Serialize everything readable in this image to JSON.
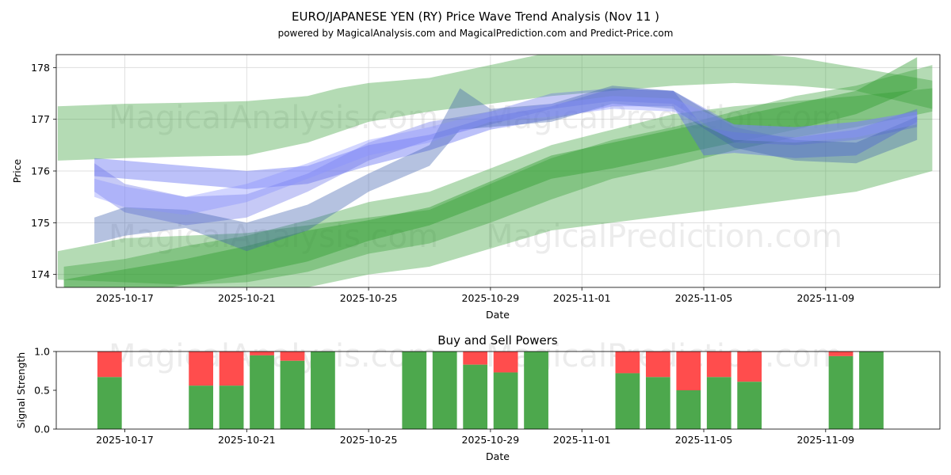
{
  "chart_data": [
    {
      "type": "area",
      "title": "EURO/JAPANESE YEN (RY) Price Wave Trend Analysis (Nov 11 )",
      "subtitle": "powered by MagicalAnalysis.com and MagicalPrediction.com and Predict-Price.com",
      "xlabel": "Date",
      "ylabel": "Price",
      "x_ticks": [
        "2025-10-17",
        "2025-10-21",
        "2025-10-25",
        "2025-10-29",
        "2025-11-01",
        "2025-11-05",
        "2025-11-09"
      ],
      "x_tick_days": [
        2,
        6,
        10,
        14,
        17,
        21,
        25
      ],
      "xlim_days": [
        -0.25,
        28.75
      ],
      "y_ticks": [
        174,
        175,
        176,
        177,
        178
      ],
      "ylim": [
        173.75,
        178.25
      ],
      "watermarks": [
        "MagicalAnalysis.com",
        "MagicalPrediction.com"
      ],
      "green_bands": [
        {
          "x": [
            -0.2,
            2,
            4,
            6,
            8,
            9,
            10,
            12,
            14,
            16,
            18,
            20,
            22,
            24,
            26,
            28.5
          ],
          "lower": [
            176.2,
            176.25,
            176.28,
            176.3,
            176.55,
            176.75,
            176.95,
            177.15,
            177.3,
            177.45,
            177.55,
            177.65,
            177.7,
            177.65,
            177.55,
            177.2
          ],
          "upper": [
            177.25,
            177.3,
            177.32,
            177.35,
            177.45,
            177.6,
            177.7,
            177.8,
            178.05,
            178.3,
            178.45,
            178.4,
            178.3,
            178.2,
            178.0,
            177.75
          ]
        },
        {
          "x": [
            -0.2,
            2,
            4,
            6,
            8,
            10,
            12,
            14,
            16,
            18,
            20,
            22,
            24,
            26,
            28.5
          ],
          "lower": [
            173.9,
            173.85,
            173.8,
            173.85,
            174.05,
            174.4,
            174.6,
            175.0,
            175.45,
            175.85,
            176.1,
            176.4,
            176.65,
            176.85,
            177.15
          ],
          "upper": [
            174.45,
            174.7,
            174.75,
            174.8,
            174.95,
            175.1,
            175.25,
            175.75,
            176.25,
            176.6,
            176.85,
            177.15,
            177.45,
            177.65,
            178.05
          ]
        },
        {
          "x": [
            0,
            2,
            4,
            6,
            8,
            10,
            12,
            14,
            16,
            18,
            20,
            22,
            24,
            26,
            28.5
          ],
          "lower": [
            172.9,
            173.0,
            173.3,
            173.45,
            173.75,
            174.0,
            174.15,
            174.5,
            174.85,
            175.0,
            175.15,
            175.3,
            175.45,
            175.6,
            176.0
          ],
          "upper": [
            174.15,
            174.3,
            174.55,
            174.75,
            175.05,
            175.4,
            175.6,
            176.05,
            176.5,
            176.8,
            177.1,
            177.25,
            177.35,
            177.45,
            177.6
          ]
        },
        {
          "x": [
            0,
            2,
            4,
            6,
            8,
            10,
            12,
            14,
            16,
            18,
            20,
            22,
            24,
            26,
            28
          ],
          "lower": [
            173.4,
            173.6,
            173.8,
            174.0,
            174.25,
            174.65,
            174.95,
            175.4,
            175.85,
            176.05,
            176.3,
            176.55,
            176.8,
            177.1,
            177.6
          ],
          "upper": [
            173.9,
            174.1,
            174.3,
            174.55,
            174.85,
            175.05,
            175.3,
            175.8,
            176.3,
            176.55,
            176.8,
            177.05,
            177.3,
            177.55,
            178.2
          ]
        }
      ],
      "blue_bands": [
        {
          "x": [
            1,
            2,
            4,
            6,
            8,
            10,
            12,
            14,
            16,
            18,
            20,
            21,
            22,
            24,
            26,
            28
          ],
          "lower": [
            175.9,
            175.85,
            175.75,
            175.65,
            175.75,
            176.1,
            176.4,
            176.8,
            177.0,
            177.25,
            177.25,
            176.3,
            176.35,
            176.25,
            176.3,
            176.95
          ],
          "upper": [
            176.25,
            176.2,
            176.1,
            176.0,
            176.1,
            176.5,
            176.7,
            177.05,
            177.25,
            177.6,
            177.55,
            176.85,
            176.75,
            176.65,
            176.8,
            177.2
          ]
        },
        {
          "x": [
            1,
            2,
            4,
            6,
            8,
            10,
            12,
            14,
            16,
            18,
            20,
            22,
            24,
            26,
            28
          ],
          "lower": [
            175.6,
            175.2,
            174.95,
            175.1,
            175.6,
            176.2,
            176.6,
            176.9,
            177.2,
            177.35,
            177.3,
            176.55,
            176.5,
            176.6,
            176.85
          ],
          "upper": [
            176.15,
            175.75,
            175.5,
            175.55,
            175.95,
            176.55,
            176.95,
            177.15,
            177.5,
            177.6,
            177.55,
            176.9,
            176.85,
            176.95,
            177.15
          ]
        },
        {
          "x": [
            1,
            2,
            4,
            6,
            8,
            10,
            12,
            13,
            14,
            16,
            18,
            20,
            22,
            24,
            26,
            28
          ],
          "lower": [
            174.6,
            174.75,
            174.9,
            174.45,
            174.85,
            175.6,
            176.1,
            176.8,
            176.85,
            176.95,
            177.3,
            177.2,
            176.45,
            176.2,
            176.15,
            176.6
          ],
          "upper": [
            175.1,
            175.3,
            175.25,
            175.0,
            175.35,
            175.95,
            176.5,
            177.6,
            177.2,
            177.3,
            177.65,
            177.55,
            176.85,
            176.6,
            176.55,
            177.05
          ]
        },
        {
          "x": [
            1,
            2,
            4,
            6,
            8,
            10,
            12,
            14,
            16,
            18,
            20,
            22,
            24,
            26,
            28
          ],
          "lower": [
            175.5,
            175.3,
            175.15,
            175.4,
            175.85,
            176.3,
            176.55,
            176.95,
            177.05,
            177.2,
            177.15,
            176.6,
            176.55,
            176.65,
            176.9
          ],
          "upper": [
            175.85,
            175.7,
            175.5,
            175.75,
            176.15,
            176.6,
            176.85,
            177.15,
            177.3,
            177.45,
            177.4,
            176.9,
            176.85,
            176.95,
            177.15
          ]
        }
      ]
    },
    {
      "type": "bar",
      "title": "Buy and Sell Powers",
      "xlabel": "Date",
      "ylabel": "Signal Strength",
      "x_ticks": [
        "2025-10-17",
        "2025-10-21",
        "2025-10-25",
        "2025-10-29",
        "2025-11-01",
        "2025-11-05",
        "2025-11-09"
      ],
      "x_tick_days": [
        2,
        6,
        10,
        14,
        17,
        21,
        25
      ],
      "xlim_days": [
        -0.25,
        28.75
      ],
      "y_ticks": [
        "0.0",
        "0.5",
        "1.0"
      ],
      "ylim": [
        0,
        1
      ],
      "watermarks": [
        "MagicalAnalysis.com",
        "MagicalPrediction.com"
      ],
      "series": [
        {
          "name": "Buy",
          "color": "#4da84d"
        },
        {
          "name": "Sell",
          "color": "#ff4d4d"
        }
      ],
      "days": [
        1.5,
        4.5,
        5.5,
        6.5,
        7.5,
        8.5,
        11.5,
        12.5,
        13.5,
        14.5,
        15.5,
        18.5,
        19.5,
        20.5,
        21.5,
        22.5,
        25.5,
        26.5
      ],
      "buy": [
        0.67,
        0.56,
        0.56,
        0.95,
        0.88,
        1.0,
        1.0,
        1.0,
        0.83,
        0.73,
        1.0,
        0.72,
        0.67,
        0.5,
        0.67,
        0.61,
        0.94,
        1.0
      ]
    }
  ]
}
